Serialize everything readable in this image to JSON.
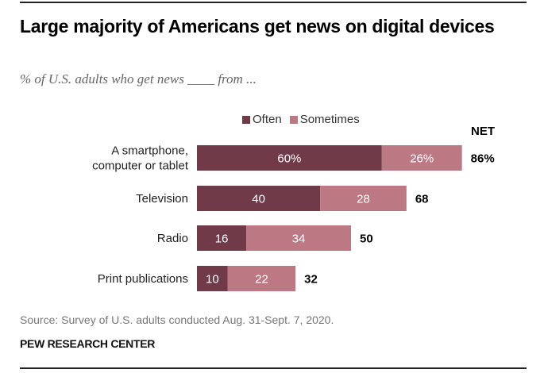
{
  "header": {
    "title": "Large majority of Americans get news on digital devices",
    "subtitle": "% of U.S. adults who get news ____ from ..."
  },
  "footer": {
    "source": "Source: Survey of U.S. adults conducted Aug. 31-Sept. 7, 2020.",
    "org": "PEW RESEARCH CENTER"
  },
  "colors": {
    "often": "#713a48",
    "sometimes": "#bc7883",
    "label_on_bar": "#ffffff"
  },
  "chart_data": {
    "type": "bar",
    "orientation": "horizontal",
    "stacked": true,
    "title": "Large majority of Americans get news on digital devices",
    "subtitle": "% of U.S. adults who get news ____ from ...",
    "categories": [
      [
        "A smartphone,",
        "computer or tablet"
      ],
      [
        "Television"
      ],
      [
        "Radio"
      ],
      [
        "Print publications"
      ]
    ],
    "series": [
      {
        "name": "Often",
        "values": [
          60,
          40,
          16,
          10
        ],
        "labels": [
          "60%",
          "40",
          "16",
          "10"
        ]
      },
      {
        "name": "Sometimes",
        "values": [
          26,
          28,
          34,
          22
        ],
        "labels": [
          "26%",
          "28",
          "34",
          "22"
        ]
      }
    ],
    "net": {
      "header": "NET",
      "values": [
        86,
        68,
        50,
        32
      ],
      "labels": [
        "86%",
        "68",
        "50",
        "32"
      ]
    },
    "legend": {
      "position": "top",
      "entries": [
        "Often",
        "Sometimes"
      ]
    },
    "xlim": [
      0,
      100
    ],
    "grid": false
  }
}
